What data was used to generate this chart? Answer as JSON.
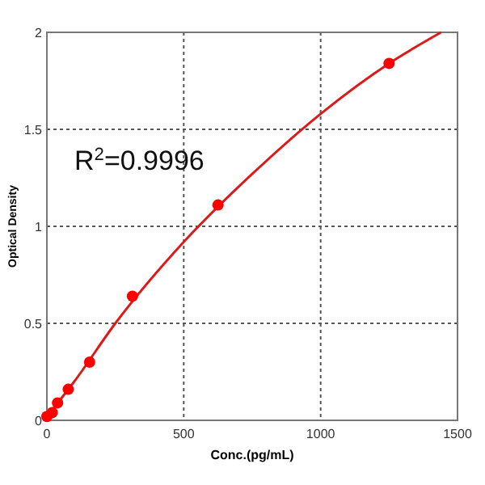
{
  "chart_data": {
    "type": "scatter",
    "xlabel": "Conc.(pg/mL)",
    "ylabel": "Optical Density",
    "annotations": [
      "R$^{2}$=0.9996"
    ],
    "xlim": [
      0,
      1500
    ],
    "ylim": [
      0,
      2
    ],
    "xticks": [
      0,
      500,
      1000,
      1500
    ],
    "yticks": [
      0,
      0.5,
      1,
      1.5,
      2
    ],
    "grid": true,
    "series": [
      {
        "color": "#ff0000",
        "marker": "circle",
        "x": [
          0,
          19.5,
          39,
          78,
          156,
          312.5,
          625,
          1250
        ],
        "values": [
          0.02,
          0.04,
          0.09,
          0.16,
          0.3,
          0.64,
          1.11,
          1.84
        ]
      },
      {
        "type": "line",
        "color": "#dd1a1a",
        "line_style": "solid",
        "x": [
          0,
          100,
          250,
          500,
          750,
          1000,
          1250,
          1440
        ],
        "values": [
          0.02,
          0.2,
          0.5,
          0.92,
          1.27,
          1.58,
          1.84,
          2.0
        ]
      }
    ]
  }
}
